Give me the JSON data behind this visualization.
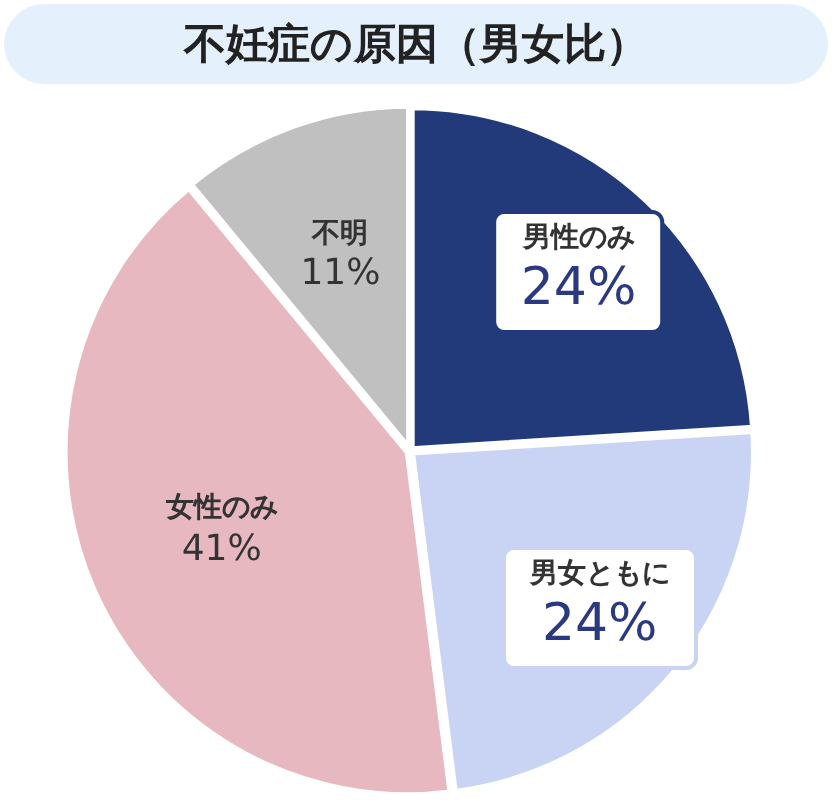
{
  "chart_data": {
    "type": "pie",
    "title": "不妊症の原因（男女比）",
    "categories": [
      "男性のみ",
      "男女ともに",
      "女性のみ",
      "不明"
    ],
    "values": [
      24,
      24,
      41,
      11
    ],
    "value_labels": [
      "24%",
      "24%",
      "41%",
      "11%"
    ],
    "colors": [
      "#233a7a",
      "#c9d4f5",
      "#e8b8c0",
      "#c0c0c0"
    ],
    "legend": false
  }
}
